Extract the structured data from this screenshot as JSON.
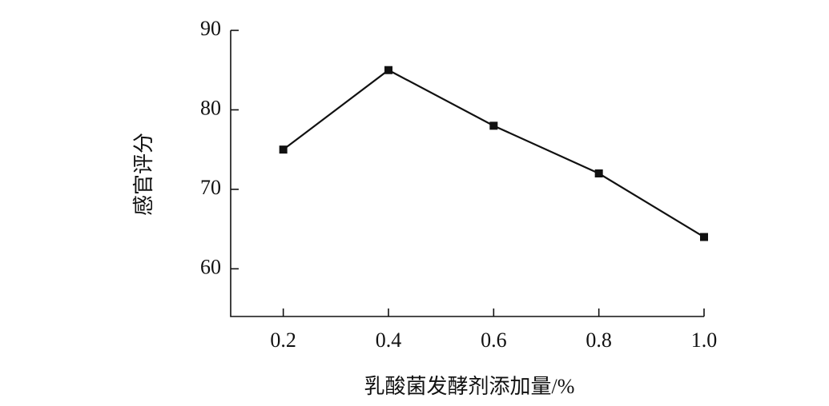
{
  "chart_data": {
    "type": "line",
    "x_label": "乳酸菌发酵剂添加量/%",
    "y_label": "感官评分",
    "x": [
      0.2,
      0.4,
      0.6,
      0.8,
      1.0
    ],
    "series": [
      {
        "color": "#111111",
        "values": [
          75,
          85,
          78,
          72,
          64
        ]
      }
    ],
    "xlim": [
      0.1,
      1.0
    ],
    "xticks": [
      0.2,
      0.4,
      0.6,
      0.8,
      {
        "value": 1,
        "label": "1.0"
      }
    ],
    "ylim": [
      54,
      90
    ],
    "yticks": [
      60,
      70,
      80,
      90
    ],
    "grid": false
  }
}
